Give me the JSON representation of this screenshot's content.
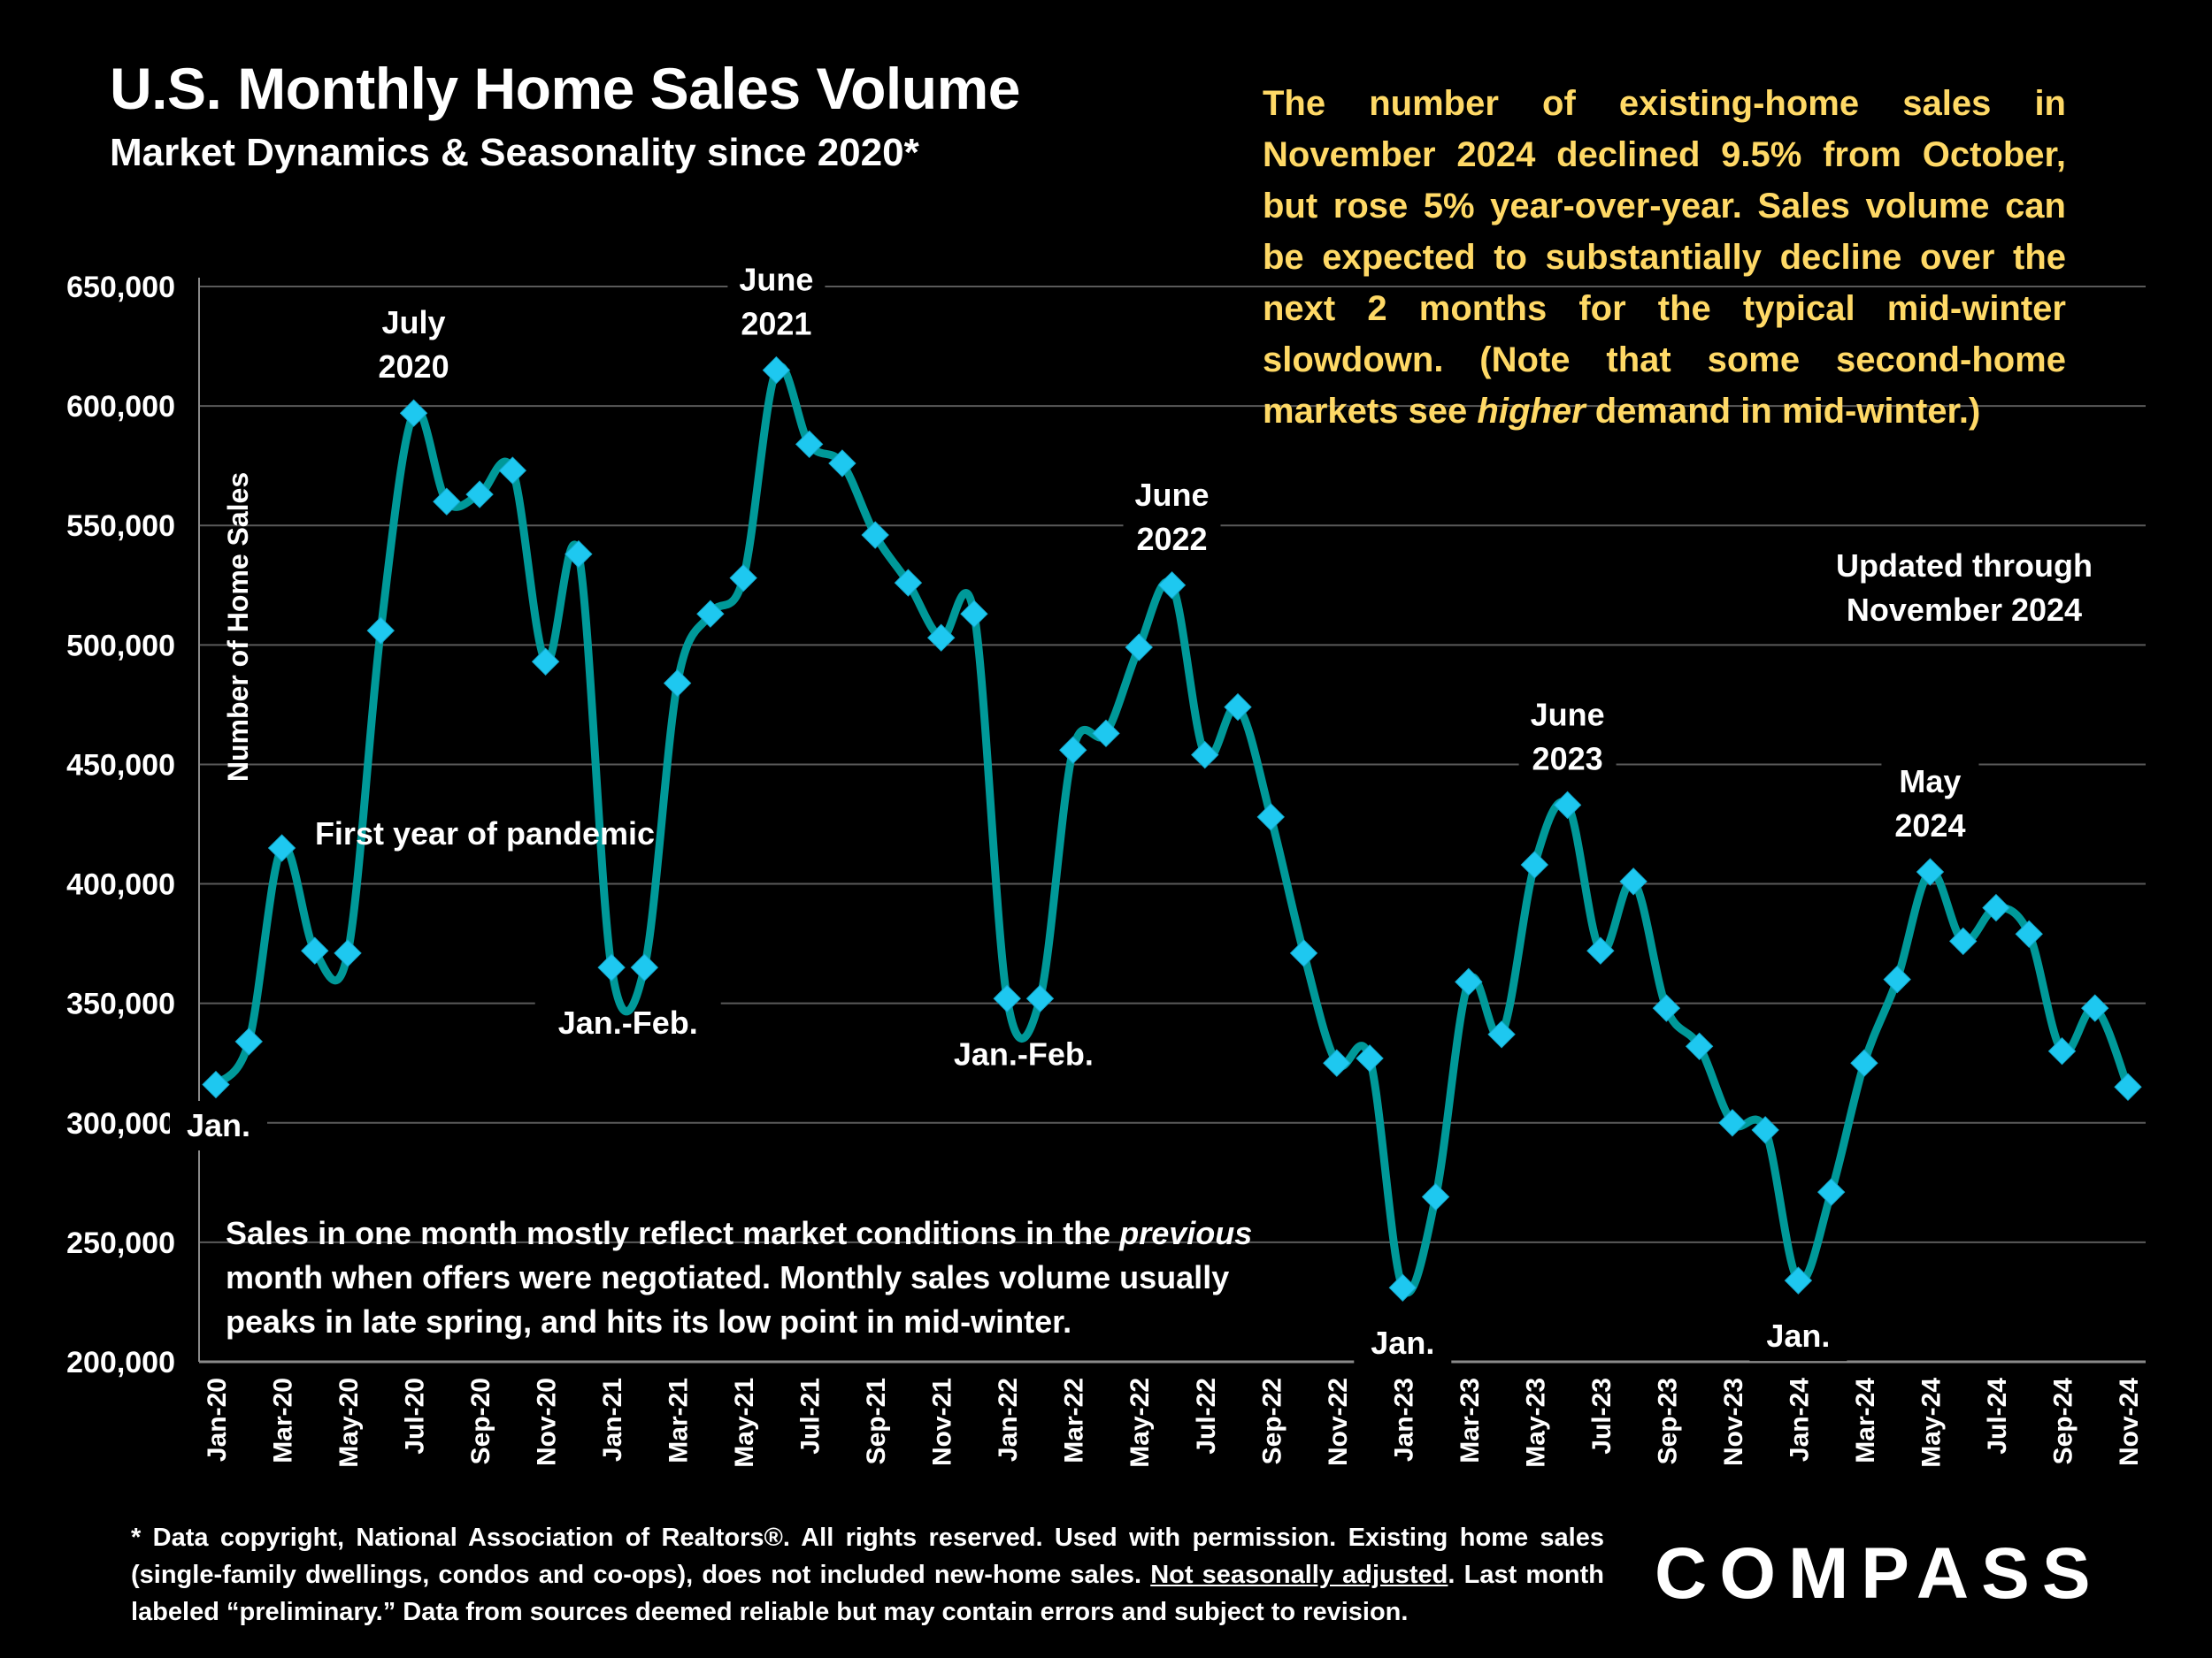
{
  "header": {
    "title": "U.S. Monthly Home Sales Volume",
    "subtitle": "Market Dynamics & Seasonality since 2020*"
  },
  "commentary": {
    "before_italic": "The number of existing-home sales in November 2024 declined 9.5% from October, but rose 5% year-over-year. Sales volume can be expected to substantially decline over the next 2 months for the typical mid-winter slowdown. (Note that some second-home markets see ",
    "italic": "higher",
    "after_italic": " demand in mid-winter.)",
    "color": "#FFD966"
  },
  "updated": {
    "line1": "Updated through",
    "line2": "November 2024"
  },
  "note": {
    "before_italic": "Sales in one month mostly reflect market conditions in the ",
    "italic": "previous",
    "after_italic": " month when offers were negotiated. Monthly sales volume usually peaks in late spring, and hits its low point in mid-winter."
  },
  "footer": {
    "part1": "* Data copyright, National Association of Realtors®. All rights reserved. Used with permission. Existing home sales (single-family dwellings, condos and co-ops), does not included new-home sales. ",
    "underlined": "Not seasonally adjusted",
    "part2": ". Last month labeled “preliminary.” Data from sources deemed reliable but may contain errors and subject to revision."
  },
  "logo": {
    "text": "COMPASS"
  },
  "chart_data": {
    "type": "line",
    "title": "U.S. Monthly Home Sales Volume",
    "subtitle": "Market Dynamics & Seasonality since 2020*",
    "xlabel": "",
    "ylabel": "Number of Home Sales",
    "ylim": [
      200000,
      650000
    ],
    "yticks": [
      200000,
      250000,
      300000,
      350000,
      400000,
      450000,
      500000,
      550000,
      600000,
      650000
    ],
    "ytick_labels": [
      "200,000",
      "250,000",
      "300,000",
      "350,000",
      "400,000",
      "450,000",
      "500,000",
      "550,000",
      "600,000",
      "650,000"
    ],
    "grid": true,
    "legend": "none",
    "line_color": "#009999",
    "marker_color": "#1EC8F0",
    "marker": "diamond",
    "smoothed": true,
    "x": [
      "Jan-20",
      "Feb-20",
      "Mar-20",
      "Apr-20",
      "May-20",
      "Jun-20",
      "Jul-20",
      "Aug-20",
      "Sep-20",
      "Oct-20",
      "Nov-20",
      "Dec-20",
      "Jan-21",
      "Feb-21",
      "Mar-21",
      "Apr-21",
      "May-21",
      "Jun-21",
      "Jul-21",
      "Aug-21",
      "Sep-21",
      "Oct-21",
      "Nov-21",
      "Dec-21",
      "Jan-22",
      "Feb-22",
      "Mar-22",
      "Apr-22",
      "May-22",
      "Jun-22",
      "Jul-22",
      "Aug-22",
      "Sep-22",
      "Oct-22",
      "Nov-22",
      "Dec-22",
      "Jan-23",
      "Feb-23",
      "Mar-23",
      "Apr-23",
      "May-23",
      "Jun-23",
      "Jul-23",
      "Aug-23",
      "Sep-23",
      "Oct-23",
      "Nov-23",
      "Dec-23",
      "Jan-24",
      "Feb-24",
      "Mar-24",
      "Apr-24",
      "May-24",
      "Jun-24",
      "Jul-24",
      "Aug-24",
      "Sep-24",
      "Oct-24",
      "Nov-24"
    ],
    "xtick_labels": [
      "Jan-20",
      "Mar-20",
      "May-20",
      "Jul-20",
      "Sep-20",
      "Nov-20",
      "Jan-21",
      "Mar-21",
      "May-21",
      "Jul-21",
      "Sep-21",
      "Nov-21",
      "Jan-22",
      "Mar-22",
      "May-22",
      "Jul-22",
      "Sep-22",
      "Nov-22",
      "Jan-23",
      "Mar-23",
      "May-23",
      "Jul-23",
      "Sep-23",
      "Nov-23",
      "Jan-24",
      "Mar-24",
      "May-24",
      "Jul-24",
      "Sep-24",
      "Nov-24"
    ],
    "series": [
      {
        "name": "Monthly Home Sales",
        "values": [
          316000,
          334000,
          415000,
          372000,
          371000,
          506000,
          597000,
          560000,
          563000,
          573000,
          493000,
          538000,
          365000,
          365000,
          484000,
          513000,
          528000,
          615000,
          584000,
          576000,
          546000,
          526000,
          503000,
          513000,
          352000,
          352000,
          456000,
          463000,
          499000,
          525000,
          454000,
          474000,
          428000,
          371000,
          325000,
          327000,
          231000,
          269000,
          359000,
          337000,
          408000,
          433000,
          372000,
          401000,
          348000,
          332000,
          300000,
          297000,
          234000,
          271000,
          325000,
          360000,
          405000,
          376000,
          390000,
          379000,
          330000,
          348000,
          315000
        ]
      }
    ],
    "annotations": [
      {
        "text": "Jan.",
        "index": 0,
        "position": "below"
      },
      {
        "text": "July\n2020",
        "index": 6,
        "position": "above"
      },
      {
        "text": "First year of pandemic",
        "index": 7,
        "position": "middle"
      },
      {
        "text": "Jan.-Feb.",
        "index": 12.5,
        "position": "below"
      },
      {
        "text": "June\n2021",
        "index": 17,
        "position": "above"
      },
      {
        "text": "Jan.-Feb.",
        "index": 24.5,
        "position": "below"
      },
      {
        "text": "June\n2022",
        "index": 29,
        "position": "above"
      },
      {
        "text": "Jan.",
        "index": 36,
        "position": "below"
      },
      {
        "text": "June\n2023",
        "index": 41,
        "position": "above"
      },
      {
        "text": "Jan.",
        "index": 48,
        "position": "below"
      },
      {
        "text": "May\n2024",
        "index": 52,
        "position": "above"
      }
    ]
  }
}
